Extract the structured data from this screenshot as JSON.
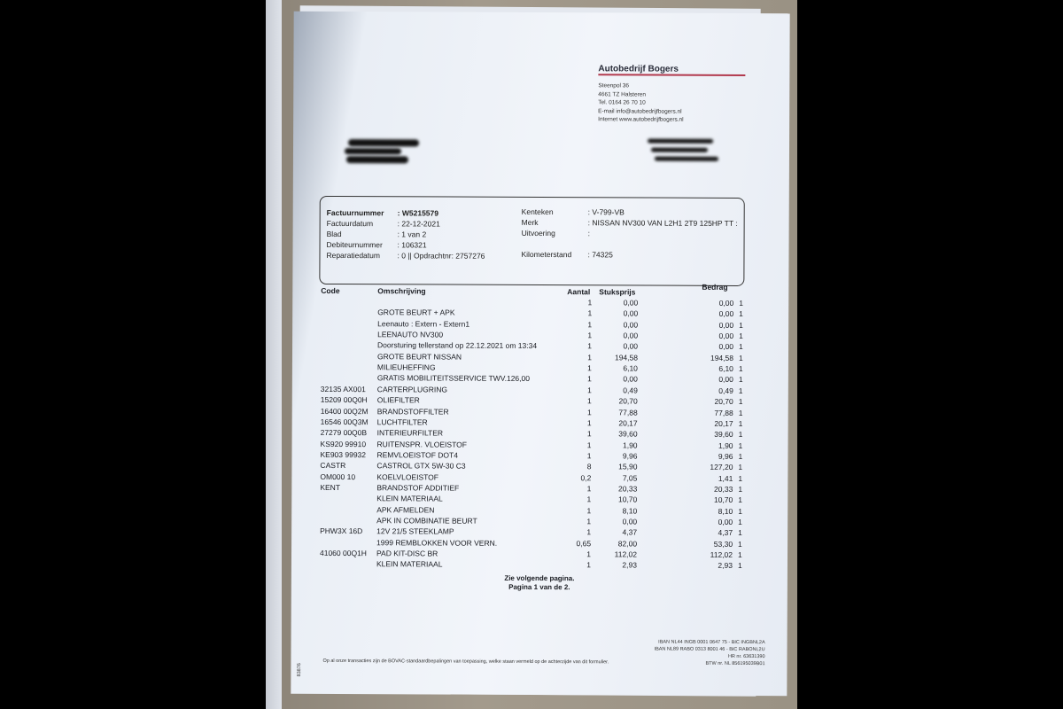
{
  "company": {
    "name": "Autobedrijf Bogers",
    "address_lines": [
      "Steenpol 36",
      "4661 TZ  Halsteren",
      "Tel. 0164 26 70 10",
      "E-mail info@autobedrijfbogers.nl",
      "Internet www.autobedrijfbogers.nl"
    ],
    "accent_color": "#b23a4e"
  },
  "invoice_info": {
    "left": [
      {
        "label": "Factuurnummer",
        "value": ": W5215579"
      },
      {
        "label": "Factuurdatum",
        "value": ": 22-12-2021"
      },
      {
        "label": "Blad",
        "value": ": 1 van 2"
      },
      {
        "label": "Debiteurnummer",
        "value": ": 106321"
      },
      {
        "label": "Reparatiedatum",
        "value": ": 0 || Opdrachtnr: 2757276"
      }
    ],
    "right": [
      {
        "label": "Kenteken",
        "value": ": V-799-VB"
      },
      {
        "label": "Merk",
        "value": ": NISSAN NV300 VAN L2H1 2T9 125HP TT :"
      },
      {
        "label": "Uitvoering",
        "value": ":"
      },
      {
        "label": "Kilometerstand",
        "value": ": 74325"
      }
    ]
  },
  "table": {
    "headers": {
      "code": "Code",
      "description": "Omschrijving",
      "quantity": "Aantal",
      "unit_price": "Stuksprijs",
      "amount": "Bedrag"
    },
    "rows": [
      {
        "code": "",
        "desc": "",
        "qty": "1",
        "price": "0,00",
        "amount": "0,00",
        "vat": "1"
      },
      {
        "code": "",
        "desc": "GROTE BEURT + APK",
        "qty": "1",
        "price": "0,00",
        "amount": "0,00",
        "vat": "1"
      },
      {
        "code": "",
        "desc": "Leenauto : Extern - Extern1",
        "qty": "1",
        "price": "0,00",
        "amount": "0,00",
        "vat": "1"
      },
      {
        "code": "",
        "desc": "LEENAUTO NV300",
        "qty": "1",
        "price": "0,00",
        "amount": "0,00",
        "vat": "1"
      },
      {
        "code": "",
        "desc": "Doorsturing tellerstand op 22.12.2021 om 13:34",
        "qty": "1",
        "price": "0,00",
        "amount": "0,00",
        "vat": "1"
      },
      {
        "code": "",
        "desc": "GROTE BEURT NISSAN",
        "qty": "1",
        "price": "194,58",
        "amount": "194,58",
        "vat": "1"
      },
      {
        "code": "",
        "desc": "MILIEUHEFFING",
        "qty": "1",
        "price": "6,10",
        "amount": "6,10",
        "vat": "1"
      },
      {
        "code": "",
        "desc": "GRATIS MOBILITEITSSERVICE TWV.126,00",
        "qty": "1",
        "price": "0,00",
        "amount": "0,00",
        "vat": "1"
      },
      {
        "code": "32135 AX001",
        "desc": "CARTERPLUGRING",
        "qty": "1",
        "price": "0,49",
        "amount": "0,49",
        "vat": "1"
      },
      {
        "code": "15209 00Q0H",
        "desc": "OLIEFILTER",
        "qty": "1",
        "price": "20,70",
        "amount": "20,70",
        "vat": "1"
      },
      {
        "code": "16400 00Q2M",
        "desc": "BRANDSTOFFILTER",
        "qty": "1",
        "price": "77,88",
        "amount": "77,88",
        "vat": "1"
      },
      {
        "code": "16546 00Q3M",
        "desc": "LUCHTFILTER",
        "qty": "1",
        "price": "20,17",
        "amount": "20,17",
        "vat": "1"
      },
      {
        "code": "27279 00Q0B",
        "desc": "INTERIEURFILTER",
        "qty": "1",
        "price": "39,60",
        "amount": "39,60",
        "vat": "1"
      },
      {
        "code": "KS920 99910",
        "desc": "RUITENSPR. VLOEISTOF",
        "qty": "1",
        "price": "1,90",
        "amount": "1,90",
        "vat": "1"
      },
      {
        "code": "KE903 99932",
        "desc": "REMVLOEISTOF DOT4",
        "qty": "1",
        "price": "9,96",
        "amount": "9,96",
        "vat": "1"
      },
      {
        "code": "CASTR",
        "desc": "CASTROL GTX 5W-30 C3",
        "qty": "8",
        "price": "15,90",
        "amount": "127,20",
        "vat": "1"
      },
      {
        "code": "OM000 10",
        "desc": "KOELVLOEISTOF",
        "qty": "0,2",
        "price": "7,05",
        "amount": "1,41",
        "vat": "1"
      },
      {
        "code": "KENT",
        "desc": "BRANDSTOF ADDITIEF",
        "qty": "1",
        "price": "20,33",
        "amount": "20,33",
        "vat": "1"
      },
      {
        "code": "",
        "desc": "KLEIN MATERIAAL",
        "qty": "1",
        "price": "10,70",
        "amount": "10,70",
        "vat": "1"
      },
      {
        "code": "",
        "desc": "APK AFMELDEN",
        "qty": "1",
        "price": "8,10",
        "amount": "8,10",
        "vat": "1"
      },
      {
        "code": "",
        "desc": "APK IN COMBINATIE BEURT",
        "qty": "1",
        "price": "0,00",
        "amount": "0,00",
        "vat": "1"
      },
      {
        "code": "PHW3X 16D",
        "desc": "12V 21/5 STEEKLAMP",
        "qty": "1",
        "price": "4,37",
        "amount": "4,37",
        "vat": "1"
      },
      {
        "code": "",
        "desc": "1999 REMBLOKKEN VOOR VERN.",
        "qty": "0,65",
        "price": "82,00",
        "amount": "53,30",
        "vat": "1"
      },
      {
        "code": "41060 00Q1H",
        "desc": "PAD KIT-DISC BR",
        "qty": "1",
        "price": "112,02",
        "amount": "112,02",
        "vat": "1"
      },
      {
        "code": "",
        "desc": "KLEIN MATERIAAL",
        "qty": "1",
        "price": "2,93",
        "amount": "2,93",
        "vat": "1"
      }
    ]
  },
  "page_notes": {
    "next": "Zie volgende pagina.",
    "page": "Pagina 1 van de 2."
  },
  "footer": {
    "terms": "Op al onze transacties zijn de BOVAC-standaardbepalingen van toepassing, welke staan vermeld op de achterzijde van dit formulier.",
    "bank_lines": [
      "IBAN NL44 INGB 0001 0647 75 - BIC INGBNL2A",
      "IBAN NL89 RABO 0313 8001 46 - BIC RABONL2U",
      "HR nr. 63631390",
      "BTW nr. NL 856195039B01"
    ],
    "form_code": "83876"
  }
}
